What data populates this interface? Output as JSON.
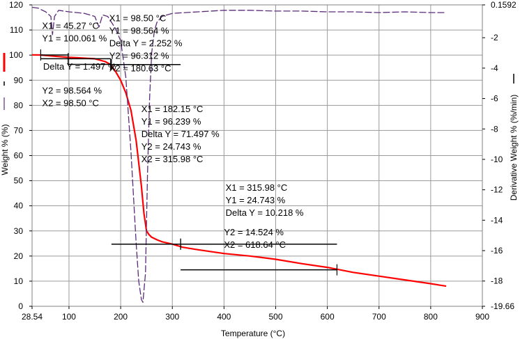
{
  "chart_data": {
    "type": "line",
    "xlabel": "Temperature (°C)",
    "ylabel_left": "Weight % (%)",
    "ylabel_right": "Derivative Weight % (%/min)",
    "x_ticks": [
      "28.54",
      "100",
      "200",
      "300",
      "400",
      "500",
      "600",
      "700",
      "800",
      "900"
    ],
    "y_left_ticks": [
      "0",
      "10",
      "20",
      "30",
      "40",
      "50",
      "60",
      "70",
      "80",
      "90",
      "100",
      "110",
      "120"
    ],
    "y_right_ticks": [
      "0.1592",
      "-2",
      "-4",
      "-6",
      "-8",
      "-10",
      "-12",
      "-14",
      "-16",
      "-18",
      "-19.66"
    ],
    "xlim": [
      28.54,
      900
    ],
    "ylim_left": [
      0,
      120
    ],
    "ylim_right": [
      -19.66,
      0.1592
    ],
    "grid": true,
    "colors": {
      "weight": "#ff0000",
      "derivative": "#5a2a7a",
      "grid": "#9a9a9a",
      "markers": "#000000"
    },
    "series": [
      {
        "axis": "left",
        "style": "solid",
        "x": [
          28.54,
          45,
          80,
          100,
          120,
          150,
          170,
          180,
          190,
          200,
          210,
          220,
          230,
          240,
          245,
          250,
          255,
          260,
          270,
          280,
          300,
          320,
          350,
          400,
          450,
          500,
          550,
          600,
          650,
          700,
          750,
          800,
          830
        ],
        "y": [
          100.1,
          100.06,
          99.4,
          99.1,
          98.9,
          98.56,
          97.4,
          96.3,
          93.5,
          90,
          85,
          78,
          66,
          48,
          37,
          30,
          28.5,
          27.5,
          26.5,
          25.7,
          24.74,
          23.5,
          22.5,
          21,
          20,
          18.7,
          17,
          15.5,
          13.5,
          12,
          10.5,
          9,
          8
        ]
      },
      {
        "axis": "right",
        "style": "dashed",
        "x": [
          28.54,
          40,
          55,
          65,
          68,
          72,
          80,
          100,
          130,
          150,
          158,
          165,
          175,
          190,
          200,
          210,
          220,
          230,
          235,
          240,
          243,
          248,
          252,
          256,
          260,
          265,
          270,
          280,
          300,
          350,
          400,
          450,
          500,
          550,
          600,
          650,
          700,
          750,
          800,
          830
        ],
        "y": [
          0,
          -0.05,
          -0.3,
          -0.6,
          -1.8,
          -0.6,
          -0.2,
          -0.3,
          -0.4,
          -0.6,
          -1.3,
          -0.5,
          -0.6,
          -1.4,
          -2.2,
          -4.6,
          -9.5,
          -15.5,
          -18.0,
          -19.2,
          -19.4,
          -17.5,
          -11.0,
          -6.0,
          -3.0,
          -1.6,
          -1.0,
          -0.6,
          -0.4,
          -0.3,
          -0.2,
          -0.2,
          -0.25,
          -0.25,
          -0.3,
          -0.3,
          -0.35,
          -0.3,
          -0.35,
          -0.35
        ]
      }
    ],
    "annotations": [
      {
        "lines": [
          "X1 = 45.27 °C",
          "Y1 = 100.061 %"
        ],
        "x": 48,
        "y": 110.5
      },
      {
        "lines": [
          "Delta Y = 1.497 %"
        ],
        "x": 50,
        "y": 94.2
      },
      {
        "lines": [
          "Y2 = 98.564 %",
          "X2 = 98.50 °C"
        ],
        "x": 48,
        "y": 84.7
      },
      {
        "lines": [
          "X1 = 98.50 °C",
          "Y1 = 98.564 %",
          "Delta Y = 2.252 %",
          "Y2 = 96.312 %",
          "X2 = 180.63 °C"
        ],
        "x": 178,
        "y": 113.5
      },
      {
        "lines": [
          "X1 = 182.15 °C",
          "Y1 = 96.239 %",
          "Delta Y = 71.497 %",
          "Y2 = 24.743 %",
          "X2 = 315.98 °C"
        ],
        "x": 240,
        "y": 77.3
      },
      {
        "lines": [
          "X1 = 315.98 °C",
          "Y1 = 24.743 %",
          "Delta Y = 10.218 %"
        ],
        "x": 403,
        "y": 46
      },
      {
        "lines": [
          "Y2 = 14.524 %",
          "X2 = 618.64 °C"
        ],
        "x": 400,
        "y": 28.2
      }
    ],
    "step_markers": [
      {
        "x1": 45.27,
        "x2": 98.5,
        "y1": 100.061,
        "y2": 98.564
      },
      {
        "x1": 98.5,
        "x2": 180.63,
        "y1": 98.564,
        "y2": 96.312
      },
      {
        "x1": 182.15,
        "x2": 315.98,
        "y1": 96.239,
        "y2": 24.743
      },
      {
        "x1": 315.98,
        "x2": 618.64,
        "y1": 24.743,
        "y2": 14.524
      }
    ]
  }
}
